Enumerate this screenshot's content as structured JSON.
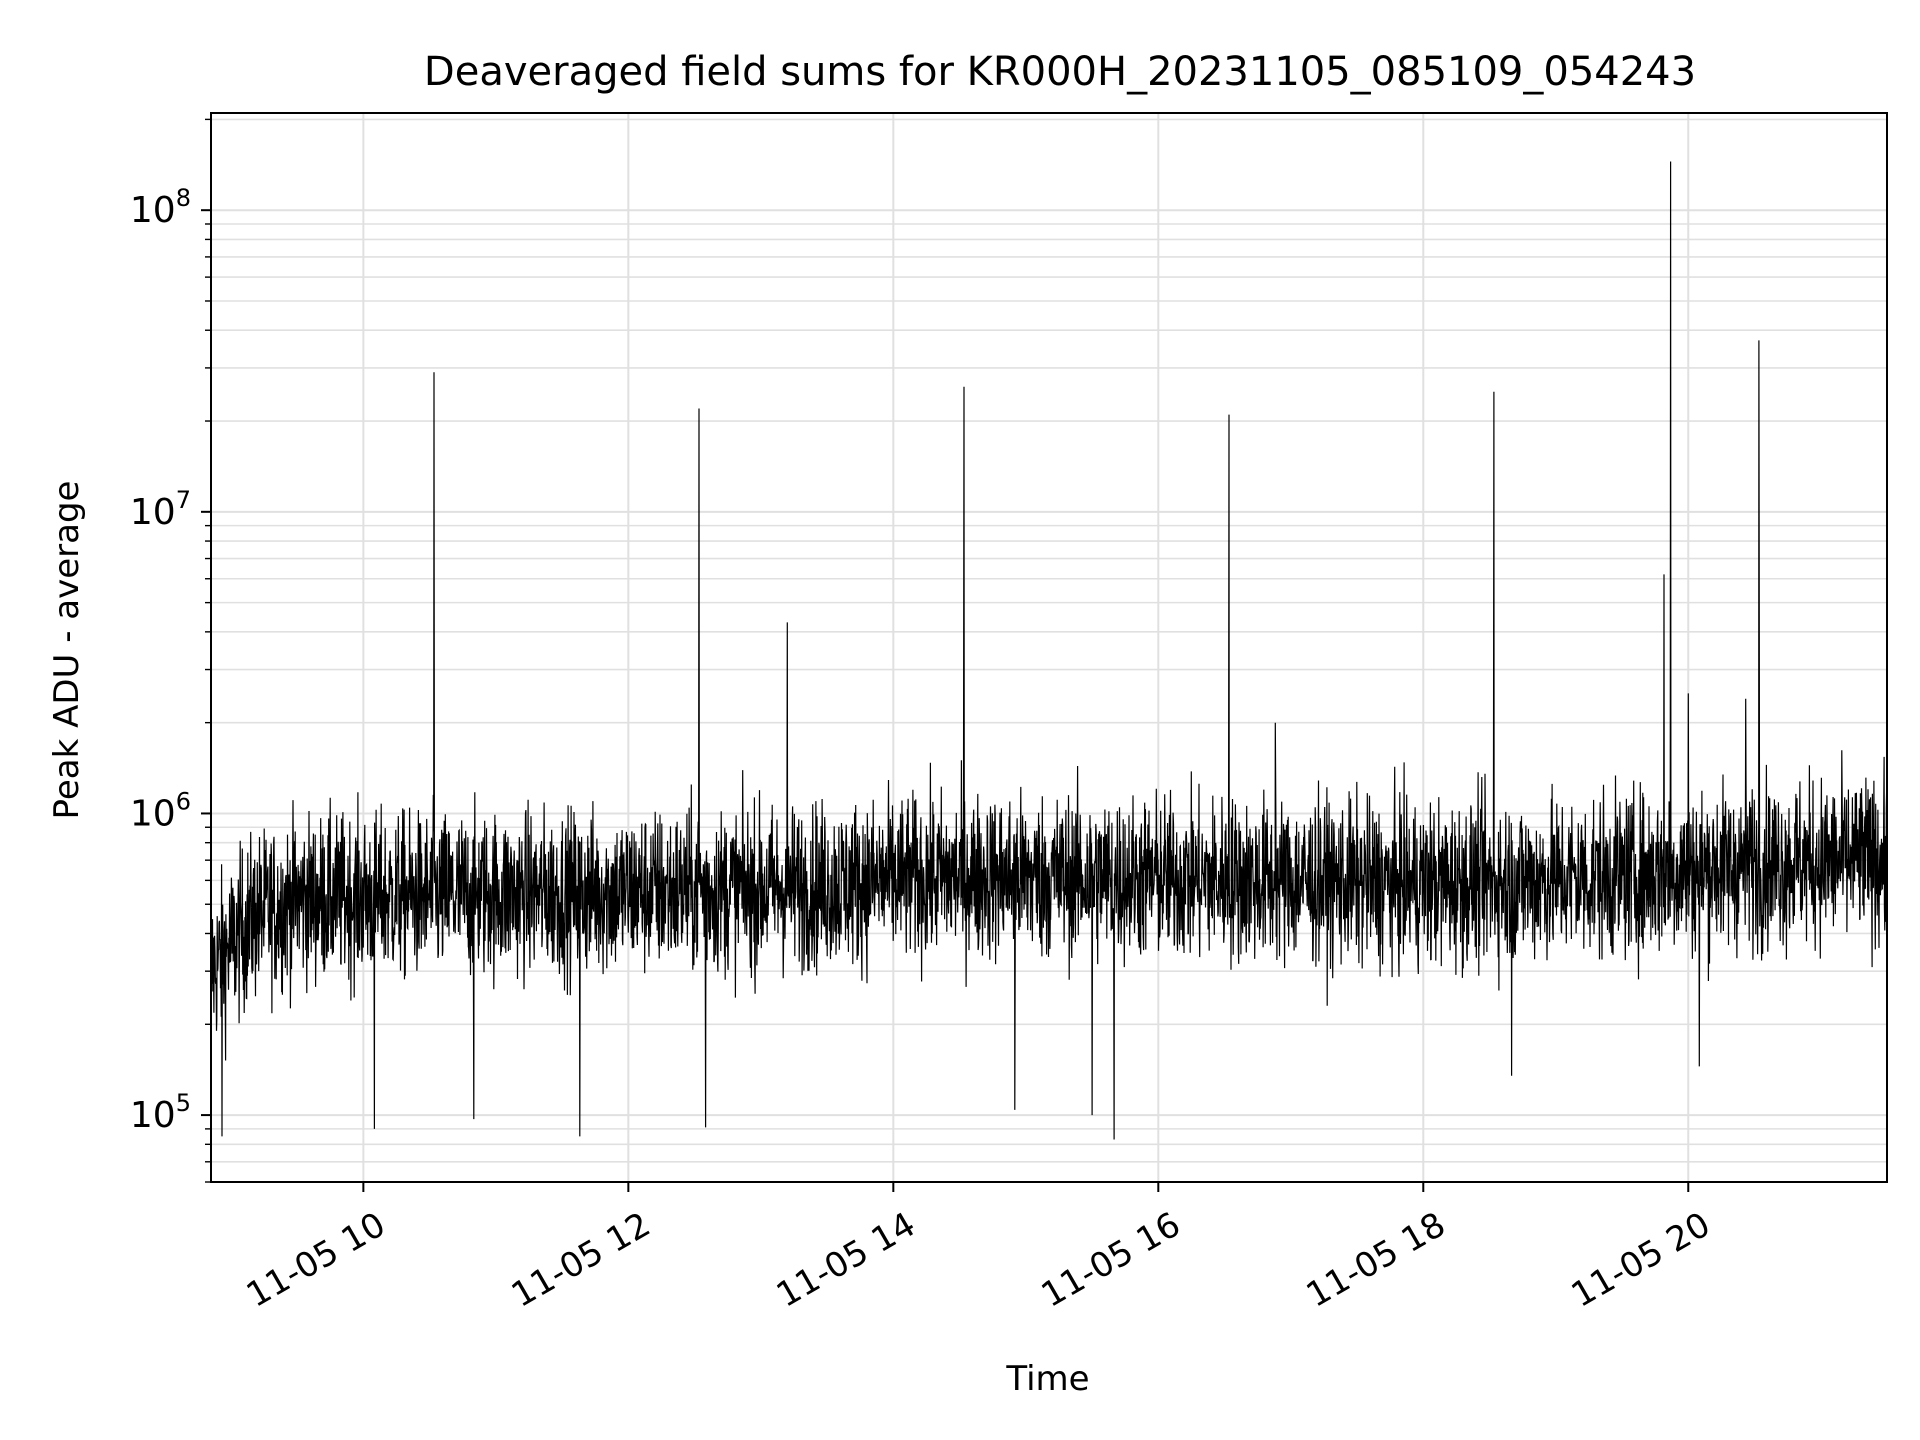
{
  "chart_data": {
    "type": "line",
    "title": "Deaveraged field sums for KR000H_20231105_085109_054243",
    "xlabel": "Time",
    "ylabel": "Peak ADU - average",
    "yscale": "log",
    "ylim": [
      60000,
      210000000
    ],
    "xlim": [
      "2023-11-05 08:51",
      "2023-11-05 21:30"
    ],
    "grid": true,
    "line_color": "#000000",
    "grid_color": "#e0e0e0",
    "x_ticks": [
      {
        "value": "2023-11-05 10:00",
        "label": "11-05 10"
      },
      {
        "value": "2023-11-05 12:00",
        "label": "11-05 12"
      },
      {
        "value": "2023-11-05 14:00",
        "label": "11-05 14"
      },
      {
        "value": "2023-11-05 16:00",
        "label": "11-05 16"
      },
      {
        "value": "2023-11-05 18:00",
        "label": "11-05 18"
      },
      {
        "value": "2023-11-05 20:00",
        "label": "11-05 20"
      }
    ],
    "y_ticks": [
      {
        "value": 100000,
        "base": "10",
        "exp": "5"
      },
      {
        "value": 1000000,
        "base": "10",
        "exp": "6"
      },
      {
        "value": 10000000,
        "base": "10",
        "exp": "7"
      },
      {
        "value": 100000000,
        "base": "10",
        "exp": "8"
      }
    ],
    "baseline": [
      {
        "t": "2023-11-05 08:51",
        "median": 300000
      },
      {
        "t": "2023-11-05 09:10",
        "median": 450000
      },
      {
        "t": "2023-11-05 09:30",
        "median": 520000
      },
      {
        "t": "2023-11-05 11:00",
        "median": 540000
      },
      {
        "t": "2023-11-05 13:00",
        "median": 560000
      },
      {
        "t": "2023-11-05 14:30",
        "median": 620000
      },
      {
        "t": "2023-11-05 16:00",
        "median": 610000
      },
      {
        "t": "2023-11-05 18:00",
        "median": 580000
      },
      {
        "t": "2023-11-05 19:30",
        "median": 620000
      },
      {
        "t": "2023-11-05 20:30",
        "median": 680000
      },
      {
        "t": "2023-11-05 21:30",
        "median": 700000
      }
    ],
    "spikes": [
      {
        "t": "2023-11-05 10:32",
        "value": 29000000
      },
      {
        "t": "2023-11-05 12:32",
        "value": 22000000
      },
      {
        "t": "2023-11-05 13:12",
        "value": 4300000
      },
      {
        "t": "2023-11-05 14:32",
        "value": 26000000
      },
      {
        "t": "2023-11-05 16:32",
        "value": 21000000
      },
      {
        "t": "2023-11-05 16:53",
        "value": 2000000
      },
      {
        "t": "2023-11-05 18:32",
        "value": 25000000
      },
      {
        "t": "2023-11-05 19:49",
        "value": 6200000
      },
      {
        "t": "2023-11-05 19:52",
        "value": 145000000
      },
      {
        "t": "2023-11-05 20:00",
        "value": 2500000
      },
      {
        "t": "2023-11-05 20:26",
        "value": 2400000
      },
      {
        "t": "2023-11-05 20:32",
        "value": 37000000
      }
    ],
    "dips": [
      {
        "t": "2023-11-05 08:56",
        "value": 85000
      },
      {
        "t": "2023-11-05 10:05",
        "value": 90000
      },
      {
        "t": "2023-11-05 10:50",
        "value": 97000
      },
      {
        "t": "2023-11-05 11:38",
        "value": 85000
      },
      {
        "t": "2023-11-05 12:35",
        "value": 91000
      },
      {
        "t": "2023-11-05 14:55",
        "value": 104000
      },
      {
        "t": "2023-11-05 15:30",
        "value": 100000
      },
      {
        "t": "2023-11-05 15:40",
        "value": 83000
      },
      {
        "t": "2023-11-05 18:40",
        "value": 135000
      },
      {
        "t": "2023-11-05 20:05",
        "value": 145000
      }
    ]
  }
}
